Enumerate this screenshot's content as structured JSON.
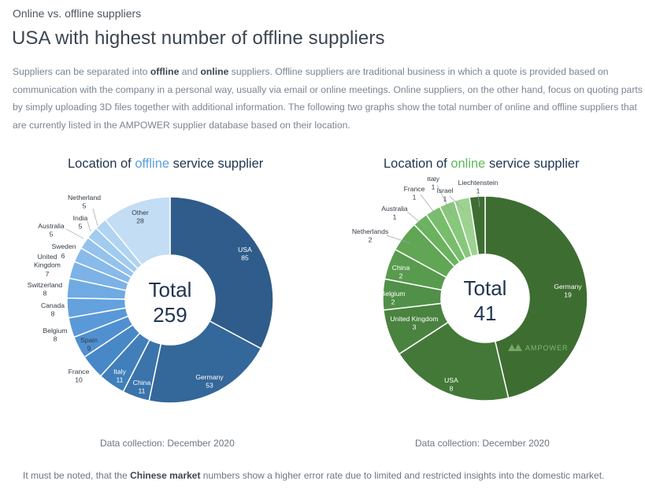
{
  "header": {
    "kicker": "Online vs. offline suppliers",
    "headline": "USA with highest number of offline suppliers"
  },
  "intro": {
    "part1": "Suppliers can be separated into ",
    "bold1": "offline",
    "part2": " and ",
    "bold2": "online",
    "part3": " suppliers. Offline suppliers are traditional business in which a quote is provided based on communication with the company in a personal way, usually via email or online meetings. Online suppliers, on the other hand, focus on quoting parts by simply uploading 3D files together with additional information. The following two graphs show the total number of online and offline suppliers that are currently listed in the AMPOWER supplier database based on their location."
  },
  "charts": {
    "offline": {
      "title_pre": "Location of ",
      "title_hl": "offline",
      "title_post": " service supplier",
      "center_label": "Total",
      "center_value": "259",
      "note": "Data collection: December 2020"
    },
    "online": {
      "title_pre": "Location of ",
      "title_hl": "online",
      "title_post": " service supplier",
      "center_label": "Total",
      "center_value": "41",
      "note": "Data collection: December 2020",
      "watermark": "AMPOWER"
    }
  },
  "footer": {
    "part1": "It must be noted, that the ",
    "bold": "Chinese market",
    "part2": " numbers show a higher error rate due to limited and restricted insights into the domestic market."
  },
  "colors": {
    "offline_shades": [
      "#2f5c8a",
      "#34679a",
      "#3b73ab",
      "#417fbb",
      "#4888c7",
      "#5090d1",
      "#5a99d8",
      "#64a2de",
      "#70aae2",
      "#7cb2e6",
      "#88baea",
      "#94c2ed",
      "#a2cbf0",
      "#b0d3f2",
      "#c3ddf5",
      "#d6e6f6"
    ],
    "online_shades": [
      "#3e6d32",
      "#447838",
      "#4a8340",
      "#519048",
      "#589b4e",
      "#60a655",
      "#6bb25f",
      "#78bd6c",
      "#88c77c",
      "#9dd291"
    ]
  },
  "chart_data": [
    {
      "type": "pie",
      "title": "Location of offline service supplier",
      "total": 259,
      "categories": [
        "USA",
        "Germany",
        "China",
        "Italy",
        "France",
        "Spain",
        "Belgium",
        "Canada",
        "Switzerland",
        "United Kingdom",
        "Sweden",
        "Australia",
        "India",
        "Netherland",
        "Other"
      ],
      "values": [
        85,
        53,
        11,
        11,
        10,
        9,
        8,
        8,
        8,
        7,
        6,
        5,
        5,
        5,
        28
      ]
    },
    {
      "type": "pie",
      "title": "Location of online service supplier",
      "total": 41,
      "categories": [
        "Germany",
        "USA",
        "United Kingdom",
        "Belgium",
        "China",
        "Netherlands",
        "Australia",
        "France",
        "Italy",
        "Israel",
        "Liechtenstein"
      ],
      "values": [
        19,
        8,
        3,
        2,
        2,
        2,
        1,
        1,
        1,
        1,
        1
      ]
    }
  ]
}
